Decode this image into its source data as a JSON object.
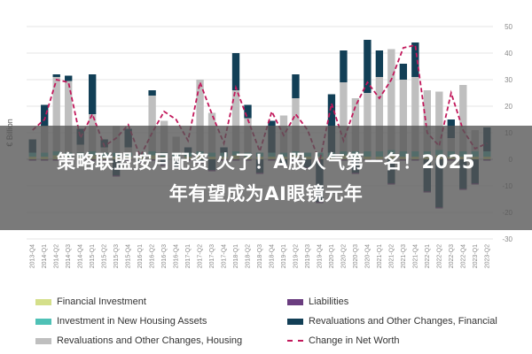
{
  "banner": {
    "line1": "策略联盟按月配资 火了！A股人气第一名！2025",
    "line2": "年有望成为AI眼镜元年"
  },
  "colors": {
    "financial_investment": "#d4df8a",
    "investment_housing": "#4fc1b6",
    "revaluations_housing": "#bfbfbf",
    "liabilities": "#6a3d7f",
    "revaluations_financial": "#123f56",
    "net_worth": "#c2185b"
  },
  "chart_data": {
    "type": "bar",
    "ylabel": "€ Billion",
    "ylim": [
      -30,
      50
    ],
    "yticks": [
      -30,
      -20,
      -10,
      0,
      10,
      20,
      30,
      40,
      50
    ],
    "grid": true,
    "legend_position": "bottom",
    "categories": [
      "2013-Q4",
      "2014-Q1",
      "2014-Q2",
      "2014-Q3",
      "2014-Q4",
      "2015-Q1",
      "2015-Q2",
      "2015-Q3",
      "2015-Q4",
      "2016-Q1",
      "2016-Q2",
      "2016-Q3",
      "2016-Q4",
      "2017-Q1",
      "2017-Q2",
      "2017-Q3",
      "2017-Q4",
      "2018-Q1",
      "2018-Q2",
      "2018-Q3",
      "2018-Q4",
      "2019-Q1",
      "2019-Q2",
      "2019-Q3",
      "2019-Q4",
      "2020-Q1",
      "2020-Q2",
      "2020-Q3",
      "2020-Q4",
      "2021-Q1",
      "2021-Q2",
      "2021-Q3",
      "2021-Q4",
      "2022-Q1",
      "2022-Q2",
      "2022-Q3",
      "2022-Q4",
      "2023-Q1",
      "2023-Q2"
    ],
    "legend": [
      "Financial Investment",
      "Liabilities",
      "Investment in New Housing Assets",
      "Revaluations and Other Changes, Financial",
      "Revaluations and Other Changes, Housing",
      "Change in Net Worth"
    ],
    "series": [
      {
        "name": "Financial Investment",
        "values": [
          1,
          1,
          1.5,
          1,
          1,
          1.5,
          1,
          1,
          1,
          1,
          1.5,
          1,
          1,
          1,
          1.5,
          1,
          1,
          1.5,
          1,
          1,
          1,
          1,
          1.5,
          1,
          1,
          1,
          1.5,
          1,
          1,
          1,
          1.5,
          1,
          1,
          1,
          1.5,
          1,
          1,
          1,
          1
        ]
      },
      {
        "name": "Investment in New Housing Assets",
        "values": [
          1.5,
          1.5,
          1.5,
          1.5,
          1.5,
          1.5,
          1.5,
          1.5,
          1.5,
          1.5,
          1.5,
          1.5,
          1.5,
          1.5,
          1.5,
          1.5,
          1.5,
          1.5,
          1.5,
          1.5,
          1.5,
          1.5,
          1.5,
          1.5,
          1.5,
          1.5,
          1.5,
          2,
          2,
          2,
          2,
          2,
          2,
          2,
          2,
          2,
          2,
          2,
          2
        ]
      },
      {
        "name": "Revaluations and Other Changes, Housing",
        "values": [
          0,
          10,
          28,
          27,
          3,
          14,
          2,
          10,
          2,
          0,
          21,
          12,
          6,
          0,
          27,
          15,
          0,
          23,
          13,
          0,
          0,
          14,
          20,
          0,
          0,
          0,
          26,
          20,
          22,
          28,
          38,
          27,
          28,
          23,
          22,
          5,
          25,
          8,
          0
        ]
      },
      {
        "name": "Revaluations and Other Changes, Financial",
        "values": [
          5,
          8,
          1,
          2,
          6,
          15,
          3,
          -6,
          7,
          -1,
          2,
          -2,
          -3,
          2,
          -1,
          -4,
          2,
          14,
          5,
          -5,
          12,
          -2,
          9,
          -3,
          -16,
          22,
          12,
          -5,
          20,
          10,
          -9,
          6,
          13,
          -12,
          -18,
          7,
          -11,
          -9,
          9
        ]
      },
      {
        "name": "Liabilities",
        "values": [
          -0.5,
          -0.5,
          -0.5,
          -0.5,
          -0.5,
          -0.5,
          -0.5,
          -0.5,
          -0.5,
          -0.5,
          -0.5,
          -0.5,
          -0.5,
          -0.5,
          -0.5,
          -0.5,
          -0.5,
          -0.5,
          -0.5,
          -0.5,
          -0.5,
          -0.5,
          -0.5,
          -0.5,
          -0.5,
          -0.5,
          -0.5,
          -0.5,
          -0.5,
          -0.5,
          -0.5,
          -0.5,
          -0.5,
          -0.5,
          -0.5,
          -0.5,
          -0.5,
          -0.5,
          -0.5
        ]
      },
      {
        "name": "Change in Net Worth",
        "type": "line",
        "values": [
          11,
          15,
          30,
          29,
          8,
          17,
          5,
          8,
          13,
          1,
          10,
          18,
          15,
          7,
          29,
          17,
          6,
          27,
          15,
          3,
          18,
          9,
          17,
          11,
          -1,
          21,
          7,
          20,
          29,
          23,
          30,
          42,
          43,
          10,
          5,
          25,
          11,
          4,
          6
        ]
      }
    ]
  }
}
